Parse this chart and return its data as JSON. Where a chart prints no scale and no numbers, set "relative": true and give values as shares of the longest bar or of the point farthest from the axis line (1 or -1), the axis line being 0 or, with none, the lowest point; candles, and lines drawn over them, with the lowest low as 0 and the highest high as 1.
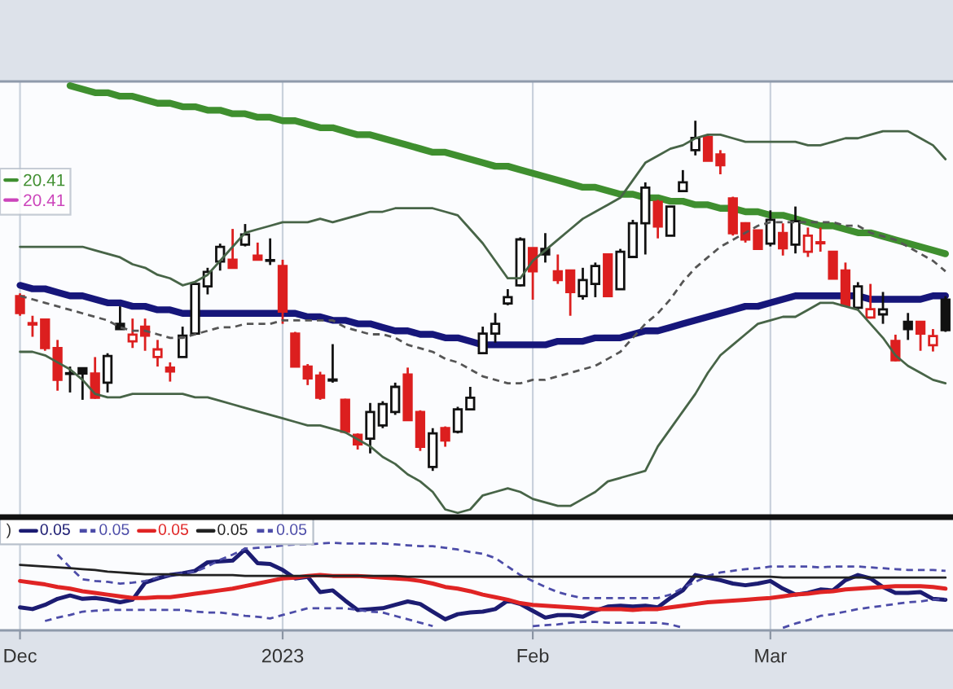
{
  "chart_data": [
    {
      "type": "candlestick",
      "relative": true,
      "ohlc": [
        [
          0.499,
          0.507,
          0.443,
          0.451
        ],
        [
          0.422,
          0.443,
          0.383,
          0.418
        ],
        [
          0.432,
          0.435,
          0.343,
          0.351
        ],
        [
          0.351,
          0.374,
          0.229,
          0.26
        ],
        [
          0.279,
          0.298,
          0.224,
          0.277
        ],
        [
          0.293,
          0.293,
          0.203,
          0.278
        ],
        [
          0.278,
          0.325,
          0.206,
          0.209
        ],
        [
          0.252,
          0.336,
          0.224,
          0.328
        ],
        [
          0.42,
          0.47,
          0.405,
          0.405
        ],
        [
          0.37,
          0.435,
          0.351,
          0.389
        ],
        [
          0.412,
          0.435,
          0.343,
          0.386
        ],
        [
          0.325,
          0.374,
          0.298,
          0.347
        ],
        [
          0.295,
          0.31,
          0.255,
          0.284
        ],
        [
          0.325,
          0.412,
          0.325,
          0.386
        ],
        [
          0.392,
          0.534,
          0.392,
          0.534
        ],
        [
          0.527,
          0.58,
          0.504,
          0.568
        ],
        [
          0.598,
          0.649,
          0.572,
          0.64
        ],
        [
          0.603,
          0.691,
          0.58,
          0.58
        ],
        [
          0.646,
          0.705,
          0.641,
          0.675
        ],
        [
          0.615,
          0.652,
          0.603,
          0.603
        ],
        [
          0.602,
          0.664,
          0.588,
          0.6
        ],
        [
          0.585,
          0.603,
          0.42,
          0.455
        ],
        [
          0.392,
          0.397,
          0.296,
          0.298
        ],
        [
          0.298,
          0.305,
          0.245,
          0.264
        ],
        [
          0.272,
          0.283,
          0.203,
          0.209
        ],
        [
          0.261,
          0.362,
          0.252,
          0.258
        ],
        [
          0.203,
          0.206,
          0.107,
          0.112
        ],
        [
          0.103,
          0.107,
          0.061,
          0.076
        ],
        [
          0.092,
          0.194,
          0.05,
          0.168
        ],
        [
          0.13,
          0.199,
          0.122,
          0.191
        ],
        [
          0.168,
          0.252,
          0.16,
          0.24
        ],
        [
          0.275,
          0.295,
          0.145,
          0.145
        ],
        [
          0.168,
          0.173,
          0.057,
          0.069
        ],
        [
          0.011,
          0.122,
          0.0,
          0.107
        ],
        [
          0.122,
          0.127,
          0.069,
          0.087
        ],
        [
          0.112,
          0.183,
          0.107,
          0.176
        ],
        [
          0.176,
          0.24,
          0.176,
          0.209
        ],
        [
          0.336,
          0.412,
          0.336,
          0.392
        ],
        [
          0.392,
          0.451,
          0.366,
          0.42
        ],
        [
          0.478,
          0.519,
          0.473,
          0.496
        ],
        [
          0.53,
          0.667,
          0.527,
          0.661
        ],
        [
          0.636,
          0.636,
          0.489,
          0.57
        ],
        [
          0.634,
          0.679,
          0.595,
          0.618
        ],
        [
          0.57,
          0.618,
          0.534,
          0.545
        ],
        [
          0.572,
          0.572,
          0.443,
          0.511
        ],
        [
          0.499,
          0.58,
          0.489,
          0.545
        ],
        [
          0.534,
          0.595,
          0.496,
          0.585
        ],
        [
          0.618,
          0.618,
          0.499,
          0.499
        ],
        [
          0.519,
          0.634,
          0.519,
          0.626
        ],
        [
          0.611,
          0.717,
          0.611,
          0.707
        ],
        [
          0.707,
          0.824,
          0.618,
          0.809
        ],
        [
          0.768,
          0.774,
          0.664,
          0.698
        ],
        [
          0.672,
          0.755,
          0.672,
          0.755
        ],
        [
          0.799,
          0.859,
          0.799,
          0.824
        ],
        [
          0.916,
          1.0,
          0.901,
          0.951
        ],
        [
          0.954,
          0.962,
          0.886,
          0.886
        ],
        [
          0.904,
          0.916,
          0.847,
          0.873
        ],
        [
          0.778,
          0.783,
          0.672,
          0.679
        ],
        [
          0.707,
          0.71,
          0.652,
          0.661
        ],
        [
          0.687,
          0.687,
          0.631,
          0.634
        ],
        [
          0.649,
          0.744,
          0.641,
          0.717
        ],
        [
          0.679,
          0.707,
          0.615,
          0.636
        ],
        [
          0.646,
          0.755,
          0.621,
          0.713
        ],
        [
          0.626,
          0.695,
          0.611,
          0.672
        ],
        [
          0.653,
          0.695,
          0.626,
          0.65
        ],
        [
          0.626,
          0.626,
          0.549,
          0.549
        ],
        [
          0.572,
          0.595,
          0.469,
          0.473
        ],
        [
          0.466,
          0.539,
          0.458,
          0.527
        ],
        [
          0.438,
          0.534,
          0.435,
          0.462
        ],
        [
          0.447,
          0.511,
          0.42,
          0.461
        ],
        [
          0.371,
          0.389,
          0.313,
          0.316
        ],
        [
          0.426,
          0.451,
          0.374,
          0.405
        ],
        [
          0.426,
          0.426,
          0.343,
          0.392
        ],
        [
          0.359,
          0.405,
          0.341,
          0.385
        ],
        [
          0.489,
          0.499,
          0.397,
          0.402
        ]
      ],
      "colors": [
        "#dc1f1f",
        "#dc1f1f",
        "#dc1f1f",
        "#dc1f1f",
        "#111111",
        "#111111",
        "#dc1f1f",
        "#111111",
        "#111111",
        "#dc1f1f",
        "#dc1f1f",
        "#dc1f1f",
        "#dc1f1f",
        "#111111",
        "#111111",
        "#111111",
        "#111111",
        "#dc1f1f",
        "#111111",
        "#dc1f1f",
        "#111111",
        "#dc1f1f",
        "#dc1f1f",
        "#dc1f1f",
        "#dc1f1f",
        "#111111",
        "#dc1f1f",
        "#dc1f1f",
        "#111111",
        "#111111",
        "#111111",
        "#dc1f1f",
        "#dc1f1f",
        "#111111",
        "#dc1f1f",
        "#111111",
        "#111111",
        "#111111",
        "#111111",
        "#111111",
        "#111111",
        "#dc1f1f",
        "#111111",
        "#dc1f1f",
        "#dc1f1f",
        "#111111",
        "#111111",
        "#dc1f1f",
        "#111111",
        "#111111",
        "#111111",
        "#dc1f1f",
        "#111111",
        "#111111",
        "#111111",
        "#dc1f1f",
        "#dc1f1f",
        "#dc1f1f",
        "#dc1f1f",
        "#dc1f1f",
        "#111111",
        "#dc1f1f",
        "#111111",
        "#dc1f1f",
        "#dc1f1f",
        "#dc1f1f",
        "#dc1f1f",
        "#111111",
        "#dc1f1f",
        "#111111",
        "#dc1f1f",
        "#111111",
        "#dc1f1f",
        "#dc1f1f",
        "#111111"
      ],
      "series": [
        {
          "type": "line",
          "name": "20.41",
          "color": "#3f8f2f",
          "values": [
            null,
            null,
            null,
            null,
            1.1,
            1.09,
            1.08,
            1.08,
            1.07,
            1.07,
            1.06,
            1.05,
            1.05,
            1.04,
            1.04,
            1.03,
            1.03,
            1.02,
            1.02,
            1.01,
            1.01,
            1.0,
            1.0,
            0.99,
            0.98,
            0.98,
            0.97,
            0.96,
            0.96,
            0.95,
            0.94,
            0.93,
            0.92,
            0.91,
            0.91,
            0.9,
            0.89,
            0.88,
            0.87,
            0.87,
            0.86,
            0.85,
            0.84,
            0.83,
            0.82,
            0.81,
            0.81,
            0.8,
            0.79,
            0.79,
            0.78,
            0.78,
            0.77,
            0.77,
            0.76,
            0.76,
            0.75,
            0.75,
            0.74,
            0.74,
            0.73,
            0.73,
            0.72,
            0.71,
            0.7,
            0.7,
            0.69,
            0.68,
            0.68,
            0.67,
            0.66,
            0.65,
            0.64,
            0.63,
            0.62
          ]
        },
        {
          "type": "line",
          "name": "20.41",
          "color": "#cc44bb",
          "values": [
            null,
            null,
            null,
            null,
            null,
            null,
            null,
            null,
            null,
            null,
            null,
            null,
            null,
            null,
            null,
            null,
            null,
            null,
            null,
            null,
            null,
            null,
            null,
            null,
            null,
            null,
            null,
            null,
            null,
            null,
            null,
            null,
            null,
            null,
            null,
            null,
            null,
            null,
            null,
            null,
            null,
            null,
            null,
            null,
            null,
            null,
            null,
            null,
            null,
            null,
            null,
            null,
            null,
            null,
            null,
            null,
            null,
            null,
            null,
            null,
            null,
            null,
            null,
            null,
            null,
            null,
            null,
            null,
            null,
            null,
            null,
            null,
            null,
            null,
            null
          ]
        },
        {
          "type": "line",
          "color": "#16167a",
          "values": [
            0.53,
            0.52,
            0.52,
            0.51,
            0.5,
            0.5,
            0.49,
            0.48,
            0.48,
            0.47,
            0.47,
            0.46,
            0.46,
            0.45,
            0.45,
            0.45,
            0.45,
            0.45,
            0.45,
            0.45,
            0.45,
            0.45,
            0.45,
            0.44,
            0.44,
            0.43,
            0.43,
            0.42,
            0.42,
            0.41,
            0.4,
            0.4,
            0.39,
            0.39,
            0.38,
            0.38,
            0.37,
            0.36,
            0.36,
            0.36,
            0.36,
            0.36,
            0.36,
            0.37,
            0.37,
            0.37,
            0.38,
            0.38,
            0.38,
            0.39,
            0.4,
            0.4,
            0.41,
            0.42,
            0.43,
            0.44,
            0.45,
            0.46,
            0.47,
            0.47,
            0.48,
            0.49,
            0.5,
            0.5,
            0.5,
            0.5,
            0.5,
            0.5,
            0.49,
            0.49,
            0.49,
            0.49,
            0.49,
            0.5,
            0.5
          ]
        },
        {
          "type": "line",
          "color": "#555555",
          "line_style": "dashed",
          "values": [
            0.5,
            0.49,
            0.48,
            0.47,
            0.46,
            0.45,
            0.44,
            0.43,
            0.41,
            0.4,
            0.4,
            0.39,
            0.38,
            0.38,
            0.39,
            0.4,
            0.41,
            0.41,
            0.42,
            0.42,
            0.42,
            0.43,
            0.43,
            0.43,
            0.43,
            0.43,
            0.41,
            0.4,
            0.39,
            0.39,
            0.38,
            0.36,
            0.35,
            0.34,
            0.32,
            0.31,
            0.29,
            0.27,
            0.26,
            0.25,
            0.25,
            0.26,
            0.26,
            0.27,
            0.28,
            0.29,
            0.3,
            0.32,
            0.34,
            0.38,
            0.42,
            0.45,
            0.49,
            0.54,
            0.58,
            0.61,
            0.64,
            0.66,
            0.68,
            0.7,
            0.71,
            0.71,
            0.71,
            0.71,
            0.71,
            0.71,
            0.7,
            0.7,
            0.68,
            0.67,
            0.66,
            0.64,
            0.62,
            0.6,
            0.57
          ]
        },
        {
          "type": "line",
          "color": "#476447",
          "line_style": "solid",
          "values": [
            0.64,
            0.64,
            0.64,
            0.64,
            0.64,
            0.64,
            0.63,
            0.62,
            0.61,
            0.59,
            0.58,
            0.56,
            0.55,
            0.53,
            0.54,
            0.56,
            0.6,
            0.64,
            0.68,
            0.69,
            0.7,
            0.71,
            0.71,
            0.71,
            0.72,
            0.71,
            0.72,
            0.73,
            0.74,
            0.74,
            0.75,
            0.75,
            0.75,
            0.75,
            0.74,
            0.73,
            0.69,
            0.65,
            0.6,
            0.55,
            0.55,
            0.6,
            0.63,
            0.66,
            0.69,
            0.72,
            0.74,
            0.76,
            0.78,
            0.83,
            0.88,
            0.9,
            0.92,
            0.93,
            0.95,
            0.96,
            0.96,
            0.95,
            0.94,
            0.94,
            0.94,
            0.94,
            0.94,
            0.93,
            0.93,
            0.94,
            0.95,
            0.95,
            0.96,
            0.97,
            0.97,
            0.97,
            0.95,
            0.93,
            0.89
          ]
        },
        {
          "type": "line",
          "color": "#476447",
          "line_style": "solid",
          "values": [
            0.34,
            0.34,
            0.33,
            0.31,
            0.29,
            0.26,
            0.22,
            0.21,
            0.21,
            0.22,
            0.22,
            0.22,
            0.22,
            0.22,
            0.21,
            0.21,
            0.2,
            0.19,
            0.18,
            0.17,
            0.16,
            0.15,
            0.14,
            0.13,
            0.13,
            0.12,
            0.11,
            0.09,
            0.07,
            0.04,
            0.02,
            -0.01,
            -0.03,
            -0.06,
            -0.11,
            -0.12,
            -0.11,
            -0.07,
            -0.06,
            -0.05,
            -0.06,
            -0.08,
            -0.09,
            -0.1,
            -0.1,
            -0.08,
            -0.06,
            -0.03,
            -0.02,
            -0.01,
            0.0,
            0.07,
            0.12,
            0.17,
            0.22,
            0.28,
            0.33,
            0.36,
            0.39,
            0.42,
            0.43,
            0.44,
            0.44,
            0.46,
            0.48,
            0.48,
            0.47,
            0.46,
            0.42,
            0.38,
            0.33,
            0.3,
            0.28,
            0.26,
            0.25
          ]
        }
      ],
      "grid": "x",
      "legend": "top left",
      "tick_labels": false
    },
    {
      "type": "line",
      "relative": true,
      "categories": [
        "Dec",
        null,
        null,
        null,
        null,
        null,
        null,
        null,
        null,
        null,
        null,
        null,
        null,
        null,
        null,
        null,
        null,
        null,
        null,
        null,
        null,
        "2023",
        null,
        null,
        null,
        null,
        null,
        null,
        null,
        null,
        null,
        null,
        null,
        null,
        null,
        null,
        null,
        null,
        null,
        null,
        null,
        "Feb",
        null,
        null,
        null,
        null,
        null,
        null,
        null,
        null,
        null,
        null,
        null,
        null,
        null,
        null,
        null,
        null,
        null,
        null,
        "Mar",
        null,
        null,
        null,
        null,
        null,
        null,
        null,
        null,
        null,
        null,
        null,
        null,
        null,
        null
      ],
      "legend_title": ")",
      "series": [
        {
          "name": "0.05",
          "color": "#1c1c72",
          "values": [
            0.24,
            0.22,
            0.27,
            0.34,
            0.38,
            0.34,
            0.35,
            0.33,
            0.3,
            0.33,
            0.53,
            0.58,
            0.62,
            0.64,
            0.67,
            0.77,
            0.78,
            0.79,
            0.92,
            0.76,
            0.75,
            0.68,
            0.58,
            0.6,
            0.42,
            0.44,
            0.32,
            0.21,
            0.22,
            0.23,
            0.27,
            0.31,
            0.28,
            0.19,
            0.1,
            0.16,
            0.18,
            0.19,
            0.22,
            0.32,
            0.28,
            0.2,
            0.12,
            0.15,
            0.15,
            0.13,
            0.2,
            0.25,
            0.26,
            0.25,
            0.26,
            0.24,
            0.35,
            0.44,
            0.62,
            0.59,
            0.56,
            0.52,
            0.5,
            0.52,
            0.55,
            0.46,
            0.39,
            0.41,
            0.45,
            0.44,
            0.56,
            0.62,
            0.58,
            0.48,
            0.41,
            0.41,
            0.42,
            0.34,
            0.33
          ]
        },
        {
          "name": "0.05",
          "color": "#4c4ca8",
          "line_style": "dashed",
          "values": [
            null,
            null,
            null,
            0.86,
            0.71,
            0.57,
            0.55,
            0.54,
            0.52,
            0.53,
            0.55,
            0.59,
            0.62,
            0.64,
            0.66,
            0.72,
            0.8,
            0.86,
            0.93,
            0.94,
            0.95,
            0.97,
            0.98,
            0.98,
            0.99,
            1.0,
            0.99,
            0.99,
            0.99,
            0.99,
            0.98,
            0.97,
            0.96,
            0.96,
            0.94,
            0.92,
            0.89,
            0.87,
            0.82,
            0.72,
            0.62,
            0.55,
            0.48,
            0.42,
            0.38,
            0.35,
            0.35,
            0.35,
            0.35,
            0.35,
            0.35,
            0.35,
            0.39,
            0.47,
            0.54,
            0.61,
            0.65,
            0.67,
            0.69,
            0.7,
            0.72,
            0.72,
            0.72,
            0.72,
            0.71,
            0.72,
            0.72,
            0.72,
            0.71,
            0.7,
            0.69,
            0.68,
            0.68,
            0.68,
            0.67
          ]
        },
        {
          "name": "0.05",
          "color": "#e02424",
          "values": [
            0.55,
            0.53,
            0.51,
            0.48,
            0.46,
            0.43,
            0.41,
            0.39,
            0.37,
            0.35,
            0.35,
            0.36,
            0.36,
            0.38,
            0.4,
            0.42,
            0.44,
            0.46,
            0.49,
            0.52,
            0.55,
            0.58,
            0.59,
            0.61,
            0.62,
            0.61,
            0.61,
            0.61,
            0.6,
            0.59,
            0.58,
            0.57,
            0.55,
            0.52,
            0.48,
            0.46,
            0.43,
            0.39,
            0.36,
            0.33,
            0.29,
            0.27,
            0.26,
            0.25,
            0.24,
            0.23,
            0.22,
            0.22,
            0.22,
            0.21,
            0.22,
            0.22,
            0.24,
            0.26,
            0.28,
            0.3,
            0.31,
            0.32,
            0.33,
            0.34,
            0.35,
            0.37,
            0.39,
            0.4,
            0.42,
            0.43,
            0.45,
            0.46,
            0.47,
            0.48,
            0.49,
            0.49,
            0.49,
            0.48,
            0.46
          ]
        },
        {
          "name": "0.05",
          "color": "#222222",
          "line_style": "solid",
          "values": [
            0.74,
            0.73,
            0.72,
            0.71,
            0.7,
            0.69,
            0.68,
            0.66,
            0.65,
            0.64,
            0.63,
            0.63,
            0.63,
            0.62,
            0.62,
            0.62,
            0.62,
            0.62,
            0.61,
            0.61,
            0.61,
            0.61,
            0.61,
            0.61,
            0.61,
            0.61,
            0.61,
            0.61,
            0.61,
            0.61,
            0.61,
            0.6,
            0.6,
            0.6,
            0.6,
            0.6,
            0.6,
            0.6,
            0.6,
            0.6,
            0.6,
            0.6,
            0.6,
            0.6,
            0.6,
            0.6,
            0.6,
            0.6,
            0.6,
            0.6,
            0.6,
            0.6,
            0.6,
            0.6,
            0.6,
            0.6,
            0.6,
            0.6,
            0.6,
            0.6,
            0.6,
            0.59,
            0.59,
            0.59,
            0.59,
            0.59,
            0.59,
            0.59,
            0.59,
            0.59,
            0.59,
            0.59,
            0.59,
            0.59,
            0.59
          ]
        },
        {
          "name": "0.05",
          "color": "#4c4ca8",
          "line_style": "dashed",
          "values": [
            null,
            null,
            0.08,
            0.12,
            0.15,
            0.19,
            0.2,
            0.21,
            0.21,
            0.21,
            0.21,
            0.21,
            0.21,
            0.21,
            0.19,
            0.18,
            0.18,
            0.16,
            0.14,
            0.13,
            0.11,
            0.15,
            0.19,
            0.23,
            0.23,
            0.23,
            0.23,
            0.21,
            0.19,
            0.18,
            0.14,
            0.1,
            0.06,
            0.02,
            null,
            null,
            null,
            null,
            null,
            null,
            null,
            0.02,
            0.03,
            0.04,
            0.06,
            0.07,
            0.07,
            0.06,
            0.06,
            0.06,
            0.06,
            0.06,
            0.04,
            0.0,
            null,
            null,
            null,
            null,
            null,
            null,
            null,
            0.0,
            0.05,
            0.09,
            0.14,
            0.16,
            0.19,
            0.22,
            0.24,
            0.26,
            0.28,
            0.3,
            0.31,
            0.33,
            0.34
          ]
        }
      ],
      "grid": "x",
      "legend": "top left"
    }
  ]
}
